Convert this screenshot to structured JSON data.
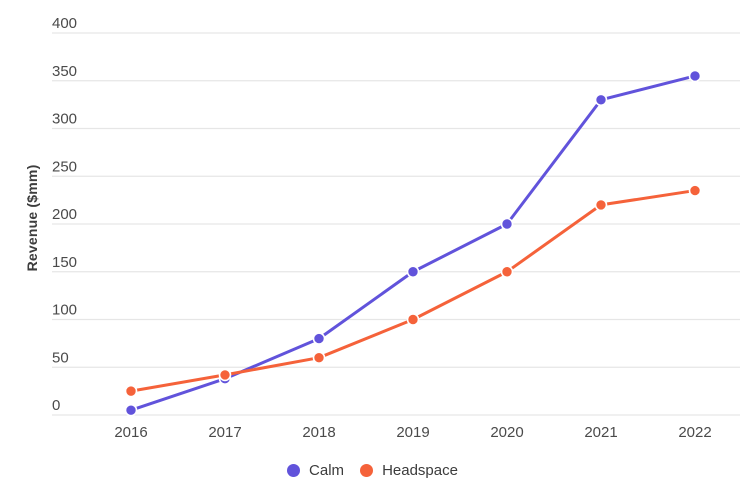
{
  "chart_data": {
    "type": "line",
    "title": "",
    "xlabel": "",
    "ylabel": "Revenue ($mm)",
    "categories": [
      "2016",
      "2017",
      "2018",
      "2019",
      "2020",
      "2021",
      "2022"
    ],
    "series": [
      {
        "name": "Calm",
        "color": "#6153DB",
        "values": [
          5,
          38,
          80,
          150,
          200,
          330,
          355
        ]
      },
      {
        "name": "Headspace",
        "color": "#F5623A",
        "values": [
          25,
          42,
          60,
          100,
          150,
          220,
          235
        ]
      }
    ],
    "ylim": [
      0,
      400
    ],
    "yticks": [
      0,
      50,
      100,
      150,
      200,
      250,
      300,
      350,
      400
    ],
    "grid": "horizontal-only",
    "legend_position": "bottom-center",
    "marker": "circle"
  },
  "colors": {
    "background": "#ffffff",
    "gridline": "#e6e6e6",
    "tick_label": "#4a4a4a",
    "axis_title": "#3d3d3d",
    "legend_text": "#3c3c3c",
    "marker_outline": "#ffffff"
  }
}
